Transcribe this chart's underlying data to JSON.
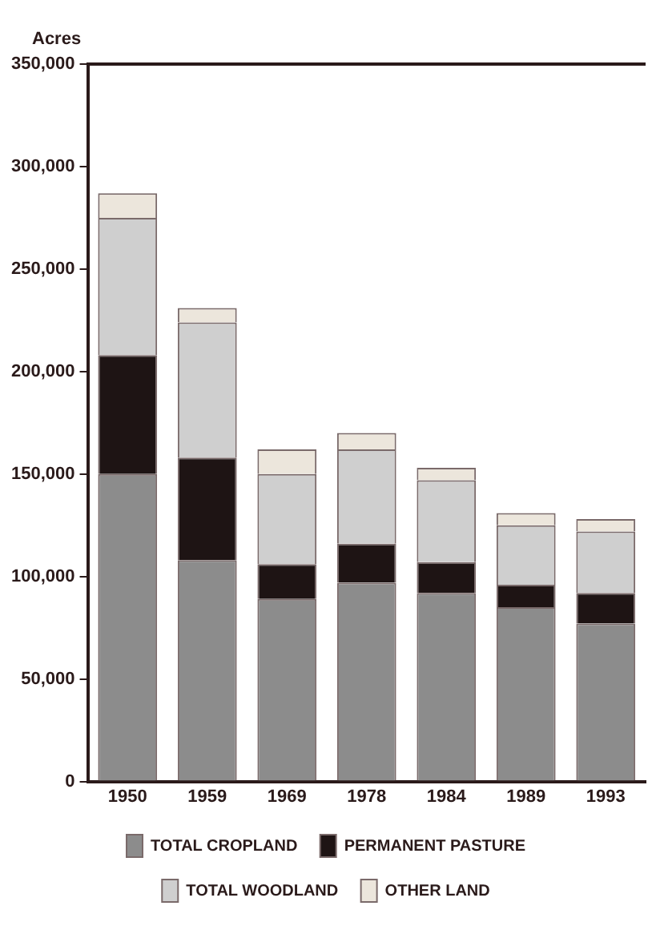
{
  "chart_data": {
    "type": "bar",
    "stacked": true,
    "ylabel": "Acres",
    "categories": [
      "1950",
      "1959",
      "1969",
      "1978",
      "1984",
      "1989",
      "1993"
    ],
    "series": [
      {
        "name": "TOTAL CROPLAND",
        "color": "#8c8c8c",
        "values": [
          150000,
          108000,
          89000,
          97000,
          92000,
          85000,
          77000
        ]
      },
      {
        "name": "PERMANENT PASTURE",
        "color": "#1e1414",
        "values": [
          58000,
          50000,
          17000,
          19000,
          15000,
          11000,
          15000
        ]
      },
      {
        "name": "TOTAL WOODLAND",
        "color": "#cfcfcf",
        "values": [
          67000,
          66000,
          44000,
          46000,
          40000,
          29000,
          30000
        ]
      },
      {
        "name": "OTHER LAND",
        "color": "#ece6dc",
        "values": [
          12000,
          7000,
          12000,
          8000,
          6000,
          6000,
          6000
        ]
      }
    ],
    "ylim": [
      0,
      350000
    ],
    "yticks": [
      {
        "value": 0,
        "label": "0"
      },
      {
        "value": 50000,
        "label": "50,000"
      },
      {
        "value": 100000,
        "label": "100,000"
      },
      {
        "value": 150000,
        "label": "150,000"
      },
      {
        "value": 200000,
        "label": "200,000"
      },
      {
        "value": 250000,
        "label": "250,000"
      },
      {
        "value": 300000,
        "label": "300,000"
      },
      {
        "value": 350000,
        "label": "350,000"
      }
    ],
    "grid": false,
    "legend": "bottom"
  }
}
